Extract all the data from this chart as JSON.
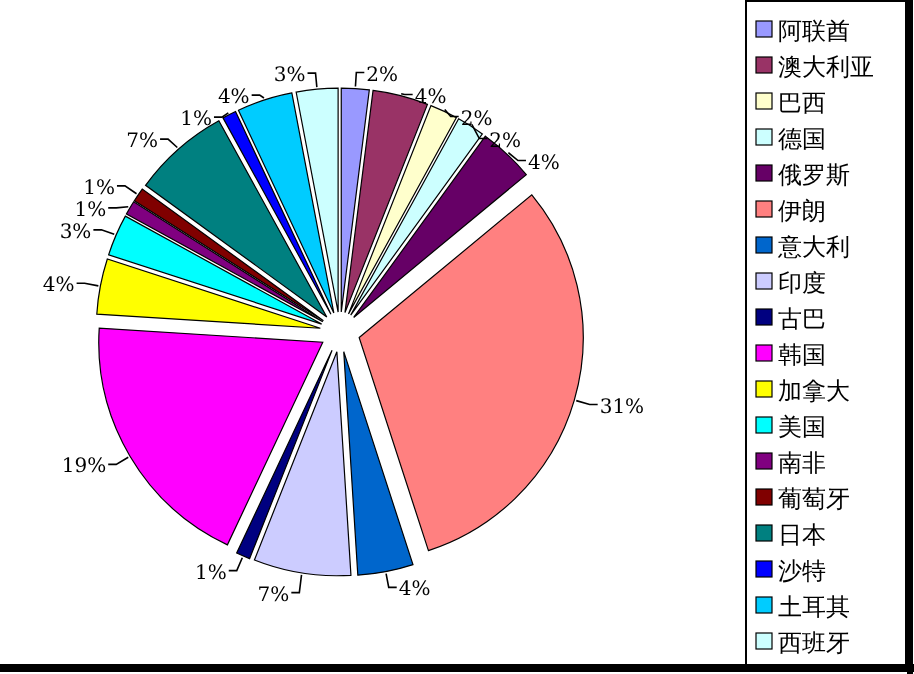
{
  "chart_data": {
    "type": "pie",
    "categories": [
      "阿联酋",
      "澳大利亚",
      "巴西",
      "德国",
      "俄罗斯",
      "伊朗",
      "意大利",
      "印度",
      "古巴",
      "韩国",
      "加拿大",
      "美国",
      "南非",
      "葡萄牙",
      "日本",
      "沙特",
      "土耳其",
      "西班牙"
    ],
    "values": [
      2,
      4,
      2,
      2,
      4,
      31,
      4,
      7,
      1,
      19,
      4,
      3,
      1,
      1,
      7,
      1,
      4,
      3
    ],
    "value_labels": [
      "2%",
      "4%",
      "2%",
      "2%",
      "4%",
      "31%",
      "4%",
      "7%",
      "1%",
      "19%",
      "4%",
      "3%",
      "1%",
      "1%",
      "7%",
      "1%",
      "4%",
      "3%"
    ],
    "colors": [
      "#9999ff",
      "#993366",
      "#ffffcc",
      "#ccffff",
      "#660066",
      "#ff8080",
      "#0066cc",
      "#ccccff",
      "#000080",
      "#ff00ff",
      "#ffff00",
      "#00ffff",
      "#800080",
      "#800000",
      "#008080",
      "#0000ff",
      "#00ccff",
      "#ccffff"
    ],
    "legend": "right"
  }
}
